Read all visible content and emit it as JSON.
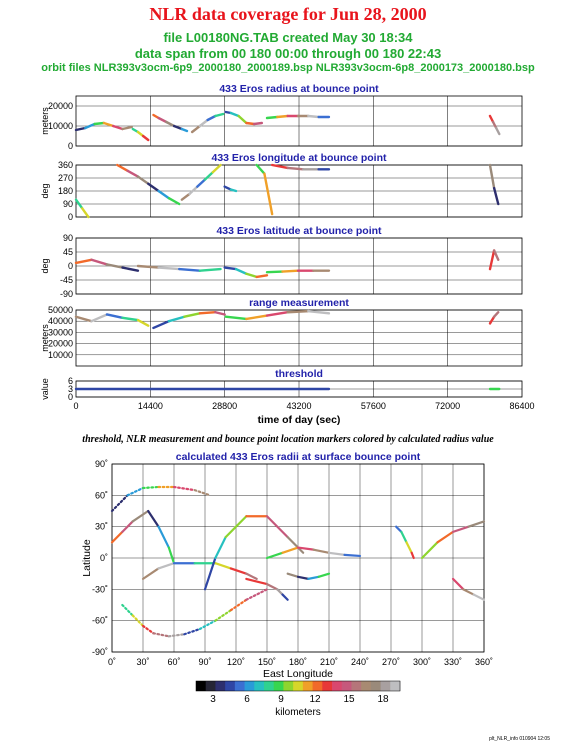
{
  "header": {
    "title": "NLR data coverage for Jun 28, 2000",
    "line1": "file L00180NG.TAB created May 30 18:34",
    "line2": "data span from 00 180 00:00 through 00 180 22:43",
    "line3": "orbit files NLR393v3ocm-6p9_2000180_2000189.bsp NLR393v3ocm-6p8_2000173_2000180.bsp"
  },
  "caption": "threshold, NLR measurement and bounce point location markers colored by calculated radius value",
  "footer": "plt_NLR_info 010904 12:05",
  "colorbar": {
    "label": "kilometers",
    "ticks": [
      "3",
      "6",
      "9",
      "12",
      "15",
      "18"
    ],
    "colors": [
      "#000000",
      "#252535",
      "#2d2f6e",
      "#2f46a5",
      "#3b6fd2",
      "#2a9bd8",
      "#27c0c0",
      "#2fd28f",
      "#37d64f",
      "#8ed52f",
      "#d6d62a",
      "#f0a028",
      "#f26a2a",
      "#e83838",
      "#d9486e",
      "#c6587c",
      "#b5757a",
      "#a88a72",
      "#9a8a7a",
      "#a8a0a0",
      "#bebec0"
    ]
  },
  "chart_data": [
    {
      "type": "line",
      "title": "433 Eros radius at bounce point",
      "ylabel": "meters",
      "ylim": [
        0,
        25000
      ],
      "yticks": [
        0,
        10000,
        20000
      ],
      "xlim": [
        0,
        86400
      ],
      "xticks": [
        14400,
        28800,
        43200,
        57600,
        72000
      ],
      "series": [
        {
          "x": [
            0,
            1800,
            3600,
            5400,
            7200,
            9000,
            10800
          ],
          "y": [
            8000,
            9000,
            11000,
            11500,
            10000,
            8500,
            9500
          ]
        },
        {
          "x": [
            11000,
            12000,
            13000,
            14000
          ],
          "y": [
            8500,
            7000,
            5000,
            3000
          ]
        },
        {
          "x": [
            15000,
            16000,
            17500,
            19000,
            20500,
            21500
          ],
          "y": [
            15500,
            14000,
            12000,
            10000,
            8500,
            7500
          ]
        },
        {
          "x": [
            22500,
            24000,
            25500,
            27000,
            28500
          ],
          "y": [
            7000,
            10000,
            13000,
            15000,
            16000
          ]
        },
        {
          "x": [
            29000,
            30000,
            31500,
            33000,
            34500,
            36000
          ],
          "y": [
            17000,
            16500,
            15000,
            11500,
            11000,
            11500
          ]
        },
        {
          "x": [
            37000,
            39000,
            41000,
            43000,
            45000,
            47000,
            49000
          ],
          "y": [
            14000,
            14500,
            15000,
            15000,
            15000,
            14500,
            14500
          ]
        },
        {
          "x": [
            80200,
            80800,
            81400,
            82000
          ],
          "y": [
            15000,
            12000,
            9000,
            6000
          ]
        }
      ]
    },
    {
      "type": "scatter",
      "title": "433 Eros longitude at bounce point",
      "ylabel": "deg",
      "ylim": [
        0,
        360
      ],
      "yticks": [
        0,
        90,
        180,
        270,
        360
      ],
      "xlim": [
        0,
        86400
      ],
      "series": [
        {
          "x": [
            0,
            1200,
            2400
          ],
          "y": [
            120,
            60,
            0
          ]
        },
        {
          "x": [
            8000,
            10000,
            12000,
            14000,
            16000,
            18000,
            20000
          ],
          "y": [
            360,
            320,
            280,
            230,
            180,
            130,
            90
          ]
        },
        {
          "x": [
            20500,
            22000,
            23500,
            25000,
            26500,
            28000
          ],
          "y": [
            120,
            160,
            210,
            260,
            310,
            360
          ]
        },
        {
          "x": [
            28800,
            30000,
            31000
          ],
          "y": [
            210,
            190,
            180
          ]
        },
        {
          "x": [
            35000,
            36500,
            38000
          ],
          "y": [
            360,
            300,
            20
          ]
        },
        {
          "x": [
            38000,
            41000,
            44000,
            47000,
            49000
          ],
          "y": [
            360,
            340,
            330,
            330,
            330
          ]
        },
        {
          "x": [
            80200,
            81000,
            81800
          ],
          "y": [
            360,
            200,
            90
          ]
        }
      ]
    },
    {
      "type": "line",
      "title": "433 Eros latitude at bounce point",
      "ylabel": "deg",
      "ylim": [
        -90,
        90
      ],
      "yticks": [
        -90,
        -45,
        0,
        45,
        90
      ],
      "xlim": [
        0,
        86400
      ],
      "series": [
        {
          "x": [
            0,
            3000,
            6000,
            9000,
            12000
          ],
          "y": [
            10,
            20,
            5,
            -5,
            -15
          ]
        },
        {
          "x": [
            12000,
            16000,
            20000,
            24000,
            28000
          ],
          "y": [
            0,
            -5,
            -10,
            -15,
            -10
          ]
        },
        {
          "x": [
            28800,
            31000,
            33000,
            35000,
            37000
          ],
          "y": [
            -5,
            -10,
            -25,
            -35,
            -30
          ]
        },
        {
          "x": [
            37000,
            40000,
            43000,
            46000,
            49000
          ],
          "y": [
            -20,
            -18,
            -15,
            -15,
            -15
          ]
        },
        {
          "x": [
            80200,
            81000,
            81800
          ],
          "y": [
            -10,
            50,
            20
          ]
        }
      ]
    },
    {
      "type": "line",
      "title": "range measurement",
      "ylabel": "meters",
      "ylim": [
        0,
        50000
      ],
      "yticks": [
        10000,
        20000,
        30000,
        40000,
        50000
      ],
      "xlim": [
        0,
        86400
      ],
      "series": [
        {
          "x": [
            0,
            3000,
            6000,
            9000,
            12000,
            14000
          ],
          "y": [
            44000,
            40000,
            46000,
            43000,
            41000,
            36000
          ]
        },
        {
          "x": [
            15000,
            18000,
            21000,
            24000,
            27000,
            28800
          ],
          "y": [
            34000,
            40000,
            44000,
            47000,
            48000,
            46000
          ]
        },
        {
          "x": [
            29000,
            33000,
            37000,
            41000,
            45000,
            49000
          ],
          "y": [
            44000,
            42000,
            45000,
            48000,
            49000,
            47000
          ]
        },
        {
          "x": [
            80200,
            81000,
            81800
          ],
          "y": [
            38000,
            44000,
            48000
          ]
        }
      ]
    },
    {
      "type": "scatter",
      "title": "threshold",
      "ylabel": "value",
      "ylim": [
        0,
        6
      ],
      "yticks": [
        0,
        3,
        6
      ],
      "xlim": [
        0,
        86400
      ],
      "xticks": [
        0,
        14400,
        28800,
        43200,
        57600,
        72000,
        86400
      ],
      "xlabel": "time of day (sec)",
      "series": [
        {
          "x": [
            0,
            49000
          ],
          "y": [
            3,
            3
          ]
        },
        {
          "x": [
            80200,
            82000
          ],
          "y": [
            3,
            3
          ]
        }
      ]
    },
    {
      "type": "scatter",
      "title": "calculated 433 Eros radii at surface bounce point",
      "xlabel": "East Longitude",
      "ylabel": "Latitude",
      "xlim": [
        0,
        360
      ],
      "ylim": [
        -90,
        90
      ],
      "xticks": [
        "0˚",
        "30˚",
        "60˚",
        "90˚",
        "120˚",
        "150˚",
        "180˚",
        "210˚",
        "240˚",
        "270˚",
        "300˚",
        "330˚",
        "360˚"
      ],
      "yticks": [
        "-90˚",
        "-60˚",
        "-30˚",
        "0˚",
        "30˚",
        "60˚",
        "90˚"
      ],
      "series": [
        {
          "x": [
            0,
            15,
            30,
            45,
            60,
            80,
            95
          ],
          "y": [
            45,
            60,
            67,
            68,
            68,
            65,
            60
          ]
        },
        {
          "x": [
            10,
            20,
            30,
            40,
            55,
            70,
            85,
            100,
            115,
            130,
            150
          ],
          "y": [
            -45,
            -55,
            -65,
            -72,
            -75,
            -73,
            -68,
            -60,
            -50,
            -40,
            -30
          ]
        },
        {
          "x": [
            0,
            10,
            20,
            35,
            45,
            55,
            60
          ],
          "y": [
            15,
            25,
            35,
            45,
            30,
            10,
            -5
          ]
        },
        {
          "x": [
            30,
            45,
            60,
            80,
            100,
            115,
            130,
            140
          ],
          "y": [
            -20,
            -10,
            -5,
            -5,
            -5,
            -10,
            -15,
            -20
          ]
        },
        {
          "x": [
            90,
            100,
            110,
            130,
            150,
            170,
            185
          ],
          "y": [
            -30,
            0,
            20,
            40,
            40,
            20,
            5
          ]
        },
        {
          "x": [
            150,
            165,
            180,
            195,
            210,
            225,
            240
          ],
          "y": [
            0,
            5,
            10,
            8,
            5,
            3,
            2
          ]
        },
        {
          "x": [
            130,
            150,
            160,
            165,
            170
          ],
          "y": [
            -20,
            -25,
            -30,
            -35,
            -40
          ]
        },
        {
          "x": [
            170,
            180,
            190,
            200,
            210
          ],
          "y": [
            -15,
            -18,
            -20,
            -18,
            -15
          ]
        },
        {
          "x": [
            275,
            280,
            285,
            290,
            292
          ],
          "y": [
            30,
            25,
            15,
            5,
            0
          ]
        },
        {
          "x": [
            300,
            315,
            330,
            345,
            360
          ],
          "y": [
            0,
            15,
            25,
            30,
            35
          ]
        },
        {
          "x": [
            330,
            340,
            350,
            360
          ],
          "y": [
            -20,
            -30,
            -35,
            -40
          ]
        }
      ]
    }
  ]
}
